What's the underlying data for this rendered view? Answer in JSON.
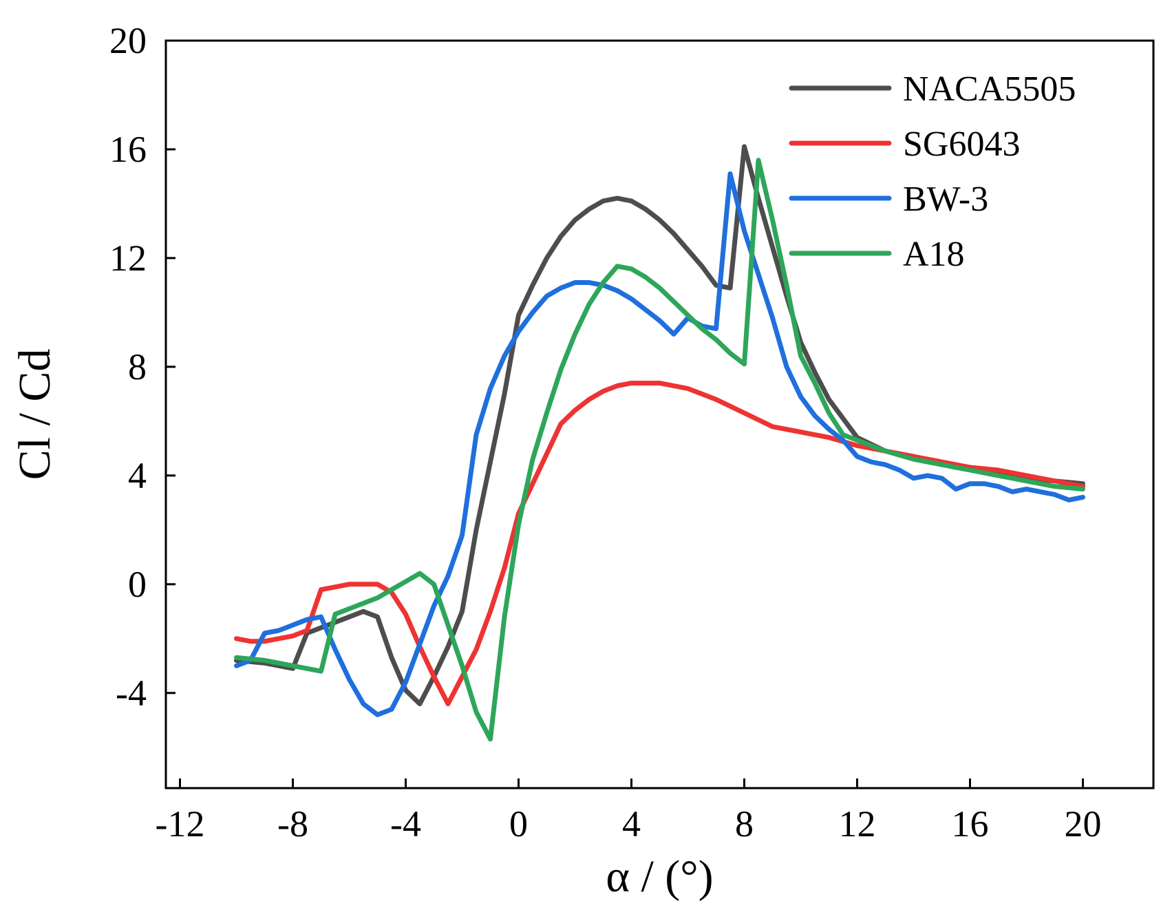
{
  "chart_data": {
    "type": "line",
    "title": "",
    "xlabel": "α / (°)",
    "ylabel": "Cl / Cd",
    "xlim": [
      -12.5,
      22.5
    ],
    "ylim": [
      -7.5,
      20
    ],
    "xticks": [
      -12,
      -8,
      -4,
      0,
      4,
      8,
      12,
      16,
      20
    ],
    "yticks": [
      -4,
      0,
      4,
      8,
      12,
      16,
      20
    ],
    "xtick_labels": [
      "-12",
      "-8",
      "-4",
      "0",
      "4",
      "8",
      "12",
      "16",
      "20"
    ],
    "ytick_labels": [
      "-4",
      "0",
      "4",
      "8",
      "12",
      "16",
      "20"
    ],
    "legend_position": "top-right",
    "series": [
      {
        "name": "NACA5505",
        "color": "#4d4d4d",
        "x": [
          -10,
          -9,
          -8,
          -7.5,
          -7,
          -6.5,
          -6,
          -5.5,
          -5,
          -4.5,
          -4,
          -3.5,
          -3,
          -2.5,
          -2,
          -1.5,
          -1,
          -0.5,
          0,
          0.5,
          1,
          1.5,
          2,
          2.5,
          3,
          3.5,
          4,
          4.5,
          5,
          5.5,
          6,
          6.5,
          7,
          7.5,
          8,
          8.5,
          9,
          9.5,
          10,
          10.5,
          11,
          12,
          13,
          14,
          15,
          16,
          17,
          18,
          19,
          20
        ],
        "y": [
          -2.8,
          -2.9,
          -3.1,
          -1.8,
          -1.6,
          -1.4,
          -1.2,
          -1.0,
          -1.2,
          -2.7,
          -3.9,
          -4.4,
          -3.4,
          -2.3,
          -1.0,
          2.0,
          4.5,
          7.0,
          9.9,
          11.0,
          12.0,
          12.8,
          13.4,
          13.8,
          14.1,
          14.2,
          14.1,
          13.8,
          13.4,
          12.9,
          12.3,
          11.7,
          11.0,
          10.9,
          16.1,
          14.2,
          12.4,
          10.6,
          8.9,
          7.8,
          6.8,
          5.4,
          4.9,
          4.7,
          4.4,
          4.3,
          4.1,
          3.9,
          3.8,
          3.7
        ]
      },
      {
        "name": "SG6043",
        "color": "#ee3333",
        "x": [
          -10,
          -9.5,
          -9,
          -8.5,
          -8,
          -7.5,
          -7,
          -6.5,
          -6,
          -5.5,
          -5,
          -4.5,
          -4,
          -3.5,
          -3,
          -2.5,
          -2,
          -1.5,
          -1,
          -0.5,
          0,
          0.5,
          1,
          1.5,
          2,
          2.5,
          3,
          3.5,
          4,
          4.5,
          5,
          6,
          7,
          8,
          9,
          10,
          11,
          12,
          13,
          14,
          15,
          16,
          17,
          18,
          19,
          20
        ],
        "y": [
          -2.0,
          -2.1,
          -2.1,
          -2.0,
          -1.9,
          -1.7,
          -0.2,
          -0.1,
          0.0,
          0.0,
          0.0,
          -0.3,
          -1.1,
          -2.3,
          -3.4,
          -4.4,
          -3.4,
          -2.4,
          -1.0,
          0.6,
          2.6,
          3.7,
          4.8,
          5.9,
          6.4,
          6.8,
          7.1,
          7.3,
          7.4,
          7.4,
          7.4,
          7.2,
          6.8,
          6.3,
          5.8,
          5.6,
          5.4,
          5.1,
          4.9,
          4.7,
          4.5,
          4.3,
          4.2,
          4.0,
          3.8,
          3.6
        ]
      },
      {
        "name": "BW-3",
        "color": "#1f6fdd",
        "x": [
          -10,
          -9.5,
          -9,
          -8.5,
          -8,
          -7.5,
          -7,
          -6.5,
          -6,
          -5.5,
          -5,
          -4.5,
          -4,
          -3.5,
          -3,
          -2.5,
          -2,
          -1.5,
          -1,
          -0.5,
          0,
          0.5,
          1,
          1.5,
          2,
          2.5,
          3,
          3.5,
          4,
          4.5,
          5,
          5.5,
          6,
          6.5,
          7,
          7.5,
          8,
          8.5,
          9,
          9.5,
          10,
          10.5,
          11,
          11.5,
          12,
          12.5,
          13,
          13.5,
          14,
          14.5,
          15,
          15.5,
          16,
          16.5,
          17,
          17.5,
          18,
          18.5,
          19,
          19.5,
          20
        ],
        "y": [
          -3.0,
          -2.8,
          -1.8,
          -1.7,
          -1.5,
          -1.3,
          -1.2,
          -2.4,
          -3.5,
          -4.4,
          -4.8,
          -4.6,
          -3.6,
          -2.2,
          -0.8,
          0.3,
          1.8,
          5.5,
          7.2,
          8.4,
          9.3,
          10.0,
          10.6,
          10.9,
          11.1,
          11.1,
          11.0,
          10.8,
          10.5,
          10.1,
          9.7,
          9.2,
          9.8,
          9.5,
          9.4,
          15.1,
          13.0,
          11.4,
          9.8,
          8.0,
          6.9,
          6.2,
          5.7,
          5.3,
          4.7,
          4.5,
          4.4,
          4.2,
          3.9,
          4.0,
          3.9,
          3.5,
          3.7,
          3.7,
          3.6,
          3.4,
          3.5,
          3.4,
          3.3,
          3.1,
          3.2
        ]
      },
      {
        "name": "A18",
        "color": "#2ea65a",
        "x": [
          -10,
          -9,
          -8,
          -7,
          -6.5,
          -6,
          -5.5,
          -5,
          -4.5,
          -4,
          -3.5,
          -3,
          -2.5,
          -2,
          -1.5,
          -1,
          -0.5,
          0,
          0.5,
          1,
          1.5,
          2,
          2.5,
          3,
          3.5,
          4,
          4.5,
          5,
          5.5,
          6,
          6.5,
          7,
          7.5,
          8,
          8.5,
          9,
          9.5,
          10,
          10.5,
          11,
          11.5,
          12,
          13,
          14,
          15,
          16,
          17,
          17.5,
          18,
          19,
          20
        ],
        "y": [
          -2.7,
          -2.8,
          -3.0,
          -3.2,
          -1.1,
          -0.9,
          -0.7,
          -0.5,
          -0.2,
          0.1,
          0.4,
          0.0,
          -1.5,
          -3.0,
          -4.7,
          -5.7,
          -1.2,
          2.2,
          4.6,
          6.3,
          7.9,
          9.2,
          10.3,
          11.1,
          11.7,
          11.6,
          11.3,
          10.9,
          10.4,
          9.9,
          9.4,
          9.0,
          8.5,
          8.1,
          15.6,
          13.4,
          11.0,
          8.4,
          7.4,
          6.3,
          5.5,
          5.3,
          4.9,
          4.6,
          4.4,
          4.2,
          4.0,
          3.9,
          3.8,
          3.6,
          3.5
        ]
      }
    ]
  }
}
